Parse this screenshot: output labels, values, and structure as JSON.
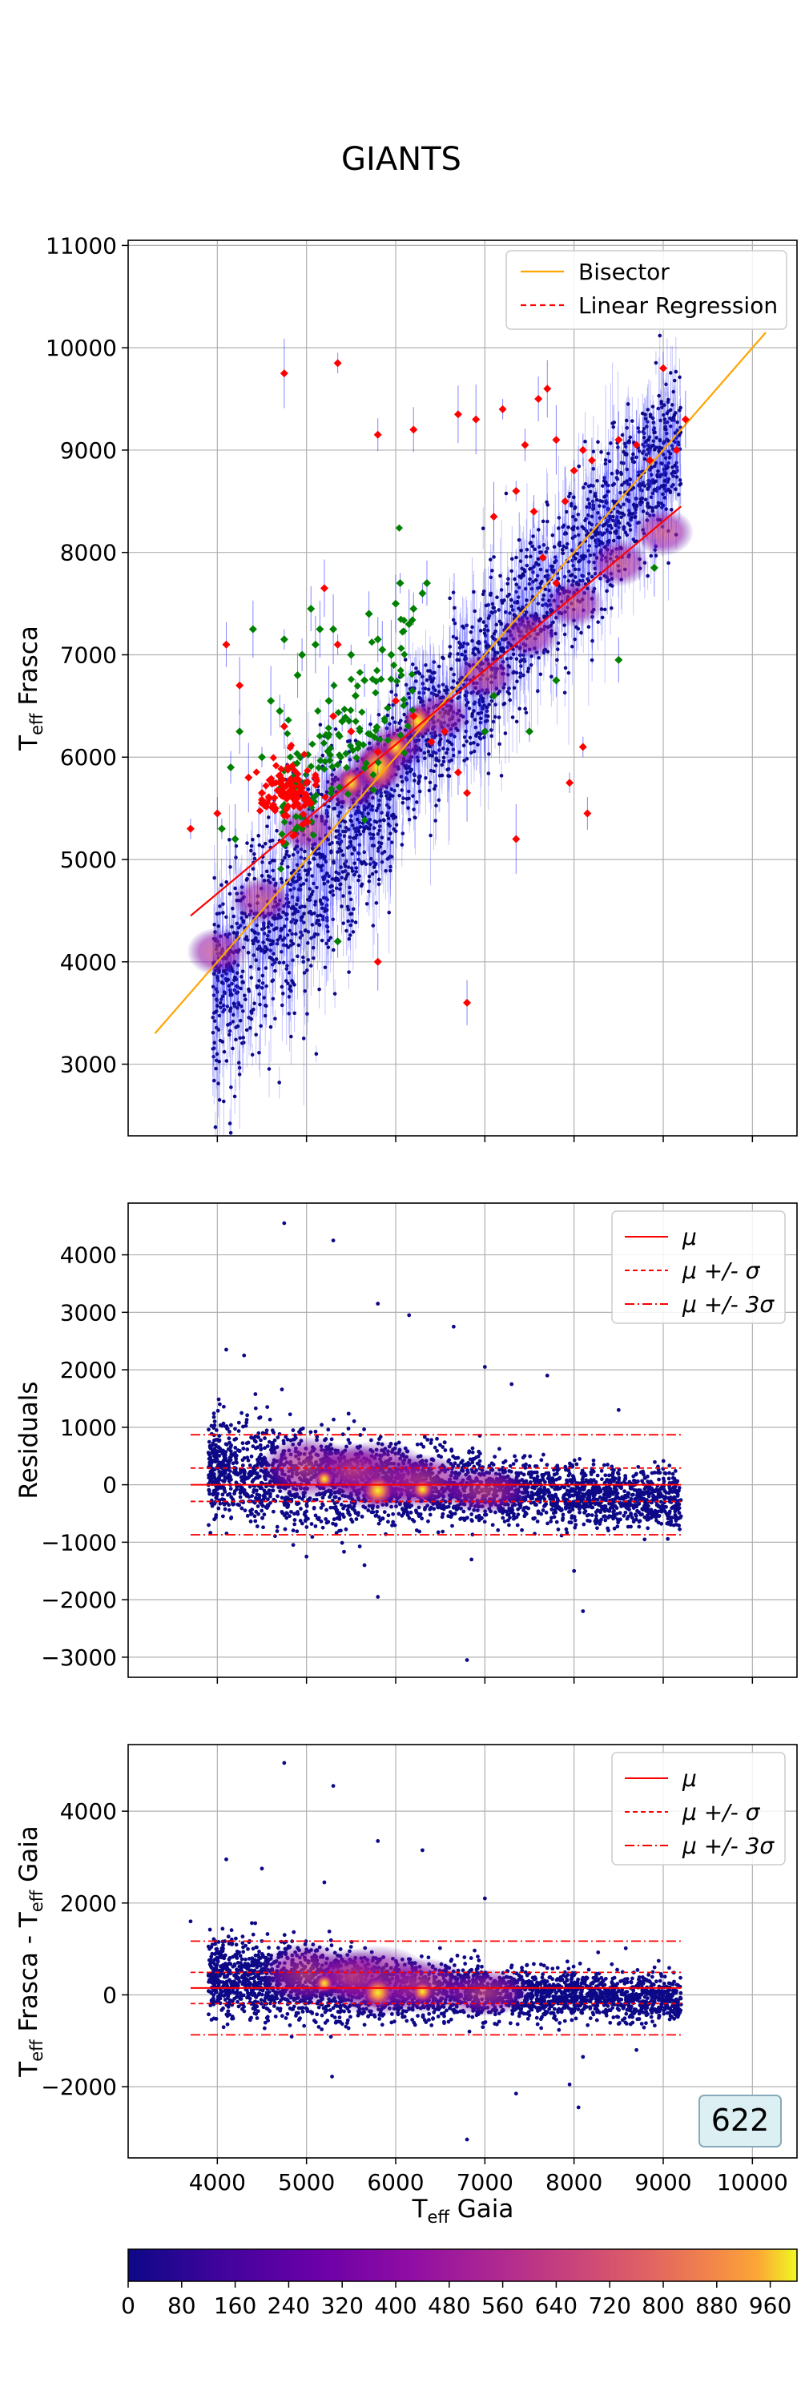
{
  "figure": {
    "title": "GIANTS",
    "xlabel_main": "T",
    "xlabel_sub": "eff",
    "xlabel_rest": " Gaia",
    "badge": "622"
  },
  "colors": {
    "bisector": "#FFA500",
    "regression": "#FF0000",
    "mu": "#FF0000",
    "points_low": "#0D0887",
    "points_green": "#008000",
    "points_red": "#FF0000",
    "errorbar": "#3333FF",
    "badge_bg": "#DCEFF3",
    "badge_border": "#88AABB"
  },
  "chart_data": [
    {
      "type": "scatter",
      "panel": "main",
      "title": "GIANTS",
      "xlabel": "",
      "ylabel": "T_eff Frasca",
      "xlim": [
        3000,
        10500
      ],
      "ylim": [
        2300,
        11050
      ],
      "yticks": [
        3000,
        4000,
        5000,
        6000,
        7000,
        8000,
        9000,
        10000,
        11000
      ],
      "grid": true,
      "legend_position": "top-right",
      "legend": [
        "Bisector",
        "Linear Regression"
      ],
      "series": [
        {
          "name": "Bisector",
          "kind": "line",
          "style": "solid",
          "x": [
            3300,
            10150
          ],
          "y": [
            3300,
            10150
          ]
        },
        {
          "name": "Linear Regression",
          "kind": "line",
          "style": "dashed-in-legend",
          "x": [
            3700,
            9200
          ],
          "y": [
            4450,
            8450
          ]
        },
        {
          "kind": "scatter",
          "color_group": "green",
          "x": [
            4050,
            4150,
            4250,
            4400,
            4600,
            4750,
            4950,
            5050,
            5150,
            5250,
            5400,
            5550,
            5700,
            5850,
            5950,
            6050,
            6200,
            6350,
            7000,
            7100,
            7500,
            7800,
            8500,
            8900,
            4200,
            4500,
            4700,
            4900,
            5100,
            5300,
            5500,
            5650,
            5800,
            6000,
            6150,
            6300,
            5350
          ],
          "y": [
            5300,
            5900,
            6250,
            7250,
            6550,
            7150,
            7000,
            7450,
            7250,
            6550,
            6350,
            6600,
            7400,
            7050,
            7000,
            7700,
            7450,
            7700,
            6250,
            6600,
            6250,
            6750,
            6950,
            7850,
            5200,
            6000,
            6450,
            6800,
            7100,
            7250,
            7000,
            6750,
            7150,
            7500,
            7300,
            7600,
            4200
          ]
        },
        {
          "kind": "scatter",
          "color_group": "red",
          "x": [
            3700,
            4000,
            4100,
            4250,
            4350,
            4500,
            4650,
            4750,
            4850,
            4950,
            5000,
            5050,
            5100,
            5200,
            5300,
            5350,
            5500,
            5800,
            6000,
            6200,
            6400,
            6550,
            6700,
            6800,
            7100,
            7350,
            7550,
            7650,
            7800,
            7900,
            8000,
            8100,
            8200,
            8500,
            8700,
            8850,
            9000,
            9150,
            9250,
            4750,
            5350,
            5800,
            6200,
            6700,
            6900,
            7200,
            7450,
            7600,
            7700,
            7800,
            8100,
            8150,
            6800,
            5800,
            7350,
            7950
          ],
          "y": [
            5300,
            5450,
            7100,
            6700,
            5800,
            5650,
            5500,
            6300,
            5600,
            5700,
            5750,
            5550,
            5800,
            7650,
            6400,
            7100,
            6250,
            6050,
            6550,
            6400,
            6150,
            6250,
            5850,
            5650,
            8350,
            8600,
            8400,
            7950,
            7700,
            8500,
            8800,
            9000,
            8900,
            9100,
            9050,
            8900,
            9800,
            9000,
            9300,
            9750,
            9850,
            9150,
            9200,
            9350,
            9300,
            9400,
            9050,
            9500,
            9600,
            9100,
            6100,
            5450,
            3600,
            4000,
            5200,
            5750
          ]
        }
      ],
      "heatmap_core": {
        "x": [
          4000,
          4500,
          5000,
          5500,
          5800,
          6000,
          6500,
          7000,
          7500,
          8000,
          8500,
          9000
        ],
        "y": [
          4100,
          4600,
          5300,
          5700,
          5900,
          6100,
          6400,
          6800,
          7200,
          7500,
          7900,
          8200
        ]
      }
    },
    {
      "type": "scatter",
      "panel": "residuals",
      "xlabel": "",
      "ylabel": "Residuals",
      "xlim": [
        3000,
        10500
      ],
      "ylim": [
        -3350,
        4900
      ],
      "yticks": [
        -3000,
        -2000,
        -1000,
        0,
        1000,
        2000,
        3000,
        4000
      ],
      "grid": true,
      "legend_position": "top-right",
      "legend": [
        "μ",
        "μ +/- σ",
        "μ +/- 3σ"
      ],
      "mu": 0,
      "sigma": 290,
      "three_sigma": 870,
      "line_x": [
        3700,
        9200
      ],
      "outliers": {
        "x": [
          4750,
          5300,
          5800,
          6150,
          6650,
          6800,
          5000,
          5650,
          5800,
          6850,
          8000,
          8100,
          4100,
          4300,
          7000,
          7300,
          7700,
          8500
        ],
        "y": [
          4550,
          4250,
          3150,
          2950,
          2750,
          -3050,
          -1250,
          -1400,
          -1950,
          -1300,
          -1500,
          -2200,
          2350,
          2250,
          2050,
          1750,
          1900,
          1300
        ]
      }
    },
    {
      "type": "scatter",
      "panel": "difference",
      "xlabel": "T_eff Gaia",
      "ylabel": "T_eff Frasca - T_eff Gaia",
      "xlim": [
        3000,
        10500
      ],
      "ylim": [
        -3550,
        5450
      ],
      "xticks": [
        4000,
        5000,
        6000,
        7000,
        8000,
        9000,
        10000
      ],
      "yticks": [
        -2000,
        0,
        2000,
        4000
      ],
      "grid": true,
      "legend_position": "top-right",
      "legend": [
        "μ",
        "μ +/- σ",
        "μ +/- 3σ"
      ],
      "mu": 150,
      "sigma": 340,
      "three_sigma": 1020,
      "line_x": [
        3700,
        9200
      ],
      "outliers": {
        "x": [
          4750,
          5300,
          5800,
          6300,
          6800,
          7000,
          7350,
          7950,
          8050,
          8100,
          4100,
          4500,
          5200,
          3700,
          8700
        ],
        "y": [
          5050,
          4550,
          3350,
          3150,
          -3150,
          2100,
          -2150,
          -1950,
          -2450,
          -1350,
          2950,
          2750,
          2450,
          1600,
          -1200
        ]
      }
    },
    {
      "type": "heatmap",
      "panel": "colorbar",
      "ticks": [
        "0",
        "80",
        "160",
        "240",
        "320",
        "400",
        "480",
        "560",
        "640",
        "720",
        "800",
        "880",
        "960"
      ],
      "range": [
        0,
        1000
      ]
    }
  ]
}
